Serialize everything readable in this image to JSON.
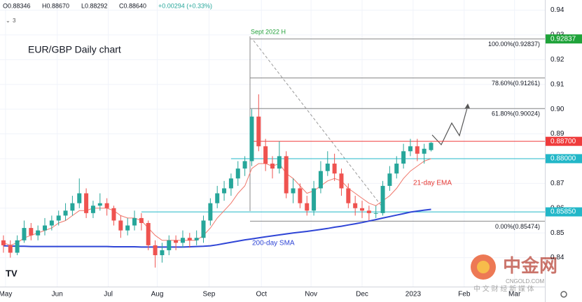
{
  "chart_data": {
    "type": "candlestick",
    "title": "EUR/GBP Daily chart",
    "header": [
      "O0.88346",
      "H0.88670",
      "L0.88292",
      "C0.88640",
      "+0.00294 (+0.33%)"
    ],
    "indicator_count": "3",
    "ylim": [
      0.8283,
      0.9441
    ],
    "yticks": [
      0.94,
      0.93,
      0.92,
      0.91,
      {
        "value": 0.9,
        "label": "0.90"
      },
      0.89,
      0.88,
      0.87,
      0.86,
      0.85,
      0.84
    ],
    "xlim": [
      -0.5,
      78.5
    ],
    "xticks": [
      {
        "value": 0.3,
        "label": "May"
      },
      {
        "value": 7.8,
        "label": "Jun"
      },
      {
        "value": 15.2,
        "label": "Jul"
      },
      {
        "value": 22.3,
        "label": "Aug"
      },
      {
        "value": 29.8,
        "label": "Sep"
      },
      {
        "value": 37.4,
        "label": "Oct"
      },
      {
        "value": 44.6,
        "label": "Nov"
      },
      {
        "value": 52,
        "label": "Dec"
      },
      {
        "value": 59.4,
        "label": "2023"
      },
      {
        "value": 66.8,
        "label": "Feb"
      },
      {
        "value": 74.1,
        "label": "Mar"
      }
    ],
    "up_color": "#26a69a",
    "down_color": "#ef5350",
    "open": [
      0.847,
      0.845,
      0.842,
      0.847,
      0.852,
      0.849,
      0.851,
      0.853,
      0.855,
      0.857,
      0.859,
      0.862,
      0.866,
      0.858,
      0.861,
      0.862,
      0.86,
      0.855,
      0.851,
      0.853,
      0.856,
      0.854,
      0.845,
      0.841,
      0.843,
      0.847,
      0.846,
      0.848,
      0.847,
      0.848,
      0.855,
      0.862,
      0.866,
      0.868,
      0.872,
      0.876,
      0.879,
      0.897,
      0.885,
      0.878,
      0.876,
      0.881,
      0.866,
      0.868,
      0.862,
      0.859,
      0.868,
      0.875,
      0.878,
      0.874,
      0.868,
      0.862,
      0.86,
      0.859,
      0.858,
      0.858,
      0.869,
      0.874,
      0.878,
      0.883,
      0.885,
      0.882,
      0.88346
    ],
    "high": [
      0.849,
      0.847,
      0.849,
      0.855,
      0.854,
      0.853,
      0.856,
      0.857,
      0.859,
      0.862,
      0.865,
      0.872,
      0.868,
      0.863,
      0.866,
      0.864,
      0.861,
      0.857,
      0.856,
      0.859,
      0.858,
      0.855,
      0.847,
      0.846,
      0.849,
      0.849,
      0.851,
      0.85,
      0.851,
      0.857,
      0.864,
      0.869,
      0.871,
      0.874,
      0.879,
      0.881,
      0.9,
      0.906,
      0.888,
      0.881,
      0.887,
      0.883,
      0.872,
      0.87,
      0.865,
      0.871,
      0.879,
      0.883,
      0.882,
      0.876,
      0.87,
      0.865,
      0.863,
      0.861,
      0.861,
      0.871,
      0.877,
      0.881,
      0.886,
      0.888,
      0.888,
      0.886,
      0.8867
    ],
    "low": [
      0.842,
      0.84,
      0.841,
      0.846,
      0.847,
      0.847,
      0.849,
      0.851,
      0.853,
      0.855,
      0.857,
      0.86,
      0.856,
      0.856,
      0.859,
      0.857,
      0.853,
      0.848,
      0.849,
      0.851,
      0.851,
      0.843,
      0.836,
      0.838,
      0.841,
      0.843,
      0.844,
      0.844,
      0.845,
      0.846,
      0.853,
      0.86,
      0.863,
      0.865,
      0.869,
      0.873,
      0.877,
      0.883,
      0.875,
      0.872,
      0.874,
      0.864,
      0.862,
      0.86,
      0.857,
      0.857,
      0.866,
      0.873,
      0.871,
      0.865,
      0.86,
      0.857,
      0.856,
      0.855,
      0.856,
      0.857,
      0.867,
      0.872,
      0.876,
      0.881,
      0.879,
      0.878,
      0.88292
    ],
    "close": [
      0.845,
      0.842,
      0.847,
      0.852,
      0.849,
      0.851,
      0.853,
      0.855,
      0.857,
      0.859,
      0.862,
      0.866,
      0.858,
      0.861,
      0.862,
      0.86,
      0.855,
      0.851,
      0.853,
      0.856,
      0.854,
      0.845,
      0.841,
      0.843,
      0.847,
      0.846,
      0.848,
      0.847,
      0.848,
      0.855,
      0.862,
      0.866,
      0.868,
      0.872,
      0.876,
      0.879,
      0.897,
      0.885,
      0.878,
      0.876,
      0.881,
      0.866,
      0.868,
      0.862,
      0.859,
      0.868,
      0.875,
      0.878,
      0.874,
      0.868,
      0.862,
      0.86,
      0.859,
      0.858,
      0.858,
      0.869,
      0.874,
      0.878,
      0.883,
      0.885,
      0.882,
      0.884,
      0.8864
    ],
    "lines": [
      {
        "name": "21-day EMA",
        "color": "#f0776b",
        "values": [
          0.846,
          0.845,
          0.846,
          0.848,
          0.849,
          0.85,
          0.851,
          0.852,
          0.854,
          0.855,
          0.857,
          0.859,
          0.859,
          0.86,
          0.86,
          0.86,
          0.859,
          0.857,
          0.856,
          0.856,
          0.855,
          0.852,
          0.849,
          0.847,
          0.847,
          0.847,
          0.847,
          0.847,
          0.847,
          0.849,
          0.852,
          0.856,
          0.859,
          0.862,
          0.866,
          0.869,
          0.876,
          0.878,
          0.878,
          0.877,
          0.878,
          0.874,
          0.872,
          0.869,
          0.866,
          0.867,
          0.869,
          0.871,
          0.872,
          0.871,
          0.868,
          0.866,
          0.864,
          0.862,
          0.861,
          0.863,
          0.865,
          0.868,
          0.872,
          0.875,
          0.877,
          0.879,
          0.88
        ]
      },
      {
        "name": "200-day SMA",
        "color": "#2f45d6",
        "values": [
          0.8448,
          0.8447,
          0.8446,
          0.8446,
          0.8445,
          0.8445,
          0.8445,
          0.8445,
          0.8445,
          0.8445,
          0.8445,
          0.8445,
          0.8445,
          0.8445,
          0.8445,
          0.8445,
          0.8444,
          0.8444,
          0.8444,
          0.8444,
          0.8443,
          0.8443,
          0.8443,
          0.8443,
          0.8443,
          0.8443,
          0.8443,
          0.8444,
          0.8445,
          0.8446,
          0.8448,
          0.8452,
          0.8457,
          0.8462,
          0.8467,
          0.8472,
          0.8476,
          0.848,
          0.8484,
          0.8488,
          0.8492,
          0.8496,
          0.85,
          0.8503,
          0.8506,
          0.851,
          0.8514,
          0.8518,
          0.8523,
          0.8527,
          0.8532,
          0.8537,
          0.8542,
          0.8548,
          0.8554,
          0.856,
          0.8566,
          0.8572,
          0.8578,
          0.8584,
          0.8588,
          0.8592,
          0.8595
        ]
      }
    ],
    "fib_levels": [
      {
        "value": 0.92837,
        "label": "100.00%(0.92837)"
      },
      {
        "value": 0.91261,
        "label": "78.60%(0.91261)"
      },
      {
        "value": 0.90024,
        "label": "61.80%(0.90024)"
      },
      {
        "value": 0.85474,
        "label": "0.00%(0.85474)"
      }
    ],
    "price_labels": [
      {
        "value": 0.92837,
        "label": "0.92837",
        "color": "#1fa33a"
      },
      {
        "value": 0.887,
        "label": "0.88700",
        "color": "#ef3b3b"
      },
      {
        "value": 0.88,
        "label": "0.88000",
        "color": "#22b7c8"
      },
      {
        "value": 0.8585,
        "label": "0.85850",
        "color": "#22b7c8"
      }
    ],
    "annotations": {
      "high": "Sept 2022 H",
      "ema": "21-day EMA",
      "sma": "200-day SMA"
    },
    "watermark": {
      "brand": "中金网",
      "site": "CNGOLD.COM",
      "slogan": "中 文 财 经 新 媒 体"
    }
  }
}
